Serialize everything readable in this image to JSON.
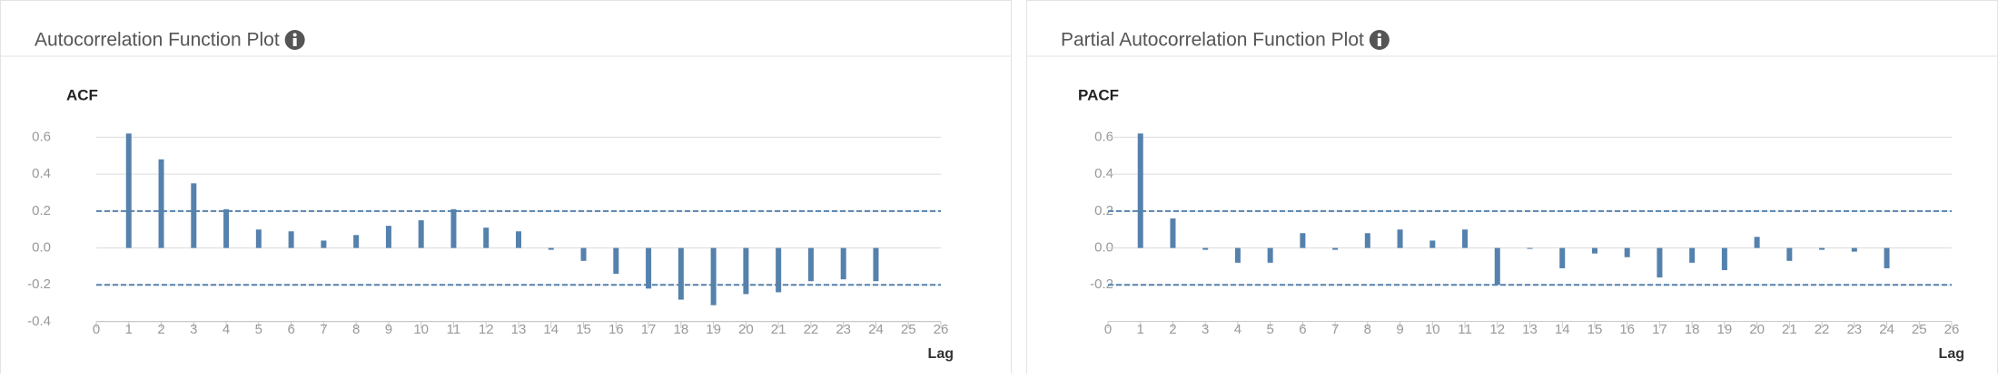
{
  "chart_data": [
    {
      "type": "bar",
      "panel_title": "Autocorrelation Function Plot",
      "title": "ACF",
      "x_label": "Lag",
      "x": [
        1,
        2,
        3,
        4,
        5,
        6,
        7,
        8,
        9,
        10,
        11,
        12,
        13,
        14,
        15,
        16,
        17,
        18,
        19,
        20,
        21,
        22,
        23,
        24
      ],
      "values": [
        0.62,
        0.48,
        0.35,
        0.21,
        0.1,
        0.09,
        0.04,
        0.07,
        0.12,
        0.15,
        0.21,
        0.11,
        0.09,
        -0.01,
        -0.07,
        -0.14,
        -0.22,
        -0.28,
        -0.31,
        -0.25,
        -0.24,
        -0.18,
        -0.17,
        -0.18
      ],
      "color": "#5581ad",
      "confidence_bounds": [
        -0.2,
        0.2
      ],
      "xlim": [
        0,
        26
      ],
      "xticks": [
        0,
        1,
        2,
        3,
        4,
        5,
        6,
        7,
        8,
        9,
        10,
        11,
        12,
        13,
        14,
        15,
        16,
        17,
        18,
        19,
        20,
        21,
        22,
        23,
        24,
        25,
        26
      ],
      "ylim": [
        -0.4,
        0.7
      ],
      "yticks": [
        -0.4,
        -0.2,
        {
          "value": 0,
          "label": "0.0"
        },
        0.2,
        0.4,
        0.6
      ],
      "grid": true
    },
    {
      "type": "bar",
      "panel_title": "Partial Autocorrelation Function Plot",
      "title": "PACF",
      "x_label": "Lag",
      "x": [
        1,
        2,
        3,
        4,
        5,
        6,
        7,
        8,
        9,
        10,
        11,
        12,
        13,
        14,
        15,
        16,
        17,
        18,
        19,
        20,
        21,
        22,
        23,
        24
      ],
      "values": [
        0.62,
        0.16,
        -0.01,
        -0.08,
        -0.08,
        0.08,
        -0.01,
        0.08,
        0.1,
        0.04,
        0.1,
        -0.2,
        0.0,
        -0.11,
        -0.03,
        -0.05,
        -0.16,
        -0.08,
        -0.12,
        0.06,
        -0.07,
        -0.01,
        -0.02,
        -0.11
      ],
      "color": "#5581ad",
      "confidence_bounds": [
        -0.2,
        0.2
      ],
      "xlim": [
        0,
        26
      ],
      "xticks": [
        0,
        1,
        2,
        3,
        4,
        5,
        6,
        7,
        8,
        9,
        10,
        11,
        12,
        13,
        14,
        15,
        16,
        17,
        18,
        19,
        20,
        21,
        22,
        23,
        24,
        25,
        26
      ],
      "ylim": [
        -0.4,
        0.7
      ],
      "yticks": [
        -0.2,
        {
          "value": 0,
          "label": "0.0"
        },
        0.2,
        0.4,
        0.6
      ],
      "grid": true
    }
  ]
}
